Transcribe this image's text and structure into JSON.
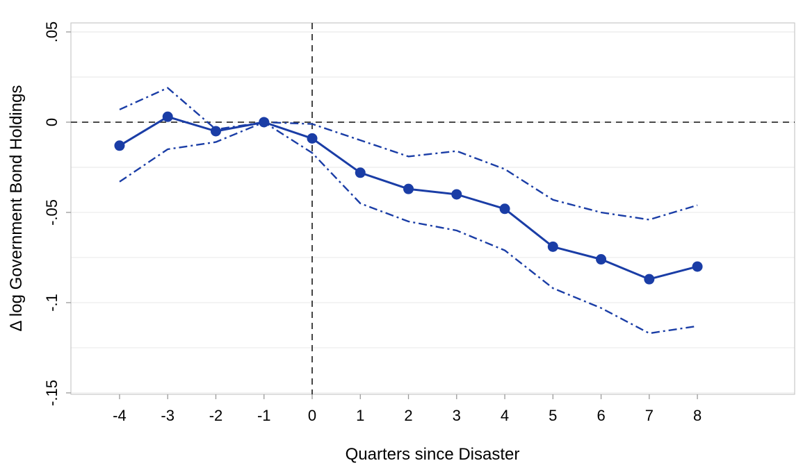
{
  "figure": {
    "xlabel": "Quarters since Disaster",
    "ylabel": "Δ log Government Bond Holdings"
  },
  "chart_data": {
    "type": "line",
    "title": "",
    "xlabel": "Quarters since Disaster",
    "ylabel": "Δ log Government Bond Holdings",
    "x": [
      -4,
      -3,
      -2,
      -1,
      0,
      1,
      2,
      3,
      4,
      5,
      6,
      7,
      8
    ],
    "series": [
      {
        "name": "point-estimate",
        "style": "solid",
        "markers": true,
        "values": [
          -0.013,
          0.003,
          -0.005,
          0.0,
          -0.009,
          -0.028,
          -0.037,
          -0.04,
          -0.048,
          -0.069,
          -0.076,
          -0.087,
          -0.08
        ]
      },
      {
        "name": "ci-upper",
        "style": "dash-dot",
        "markers": false,
        "values": [
          0.007,
          0.019,
          -0.004,
          0.0,
          -0.001,
          -0.01,
          -0.019,
          -0.016,
          -0.026,
          -0.043,
          -0.05,
          -0.054,
          -0.046
        ]
      },
      {
        "name": "ci-lower",
        "style": "dash-dot",
        "markers": false,
        "values": [
          -0.033,
          -0.015,
          -0.011,
          0.0,
          -0.017,
          -0.045,
          -0.055,
          -0.06,
          -0.071,
          -0.092,
          -0.103,
          -0.117,
          -0.113
        ]
      }
    ],
    "reference_lines": {
      "horizontal_y": 0,
      "vertical_x": 0
    },
    "xticks": {
      "values": [
        -4,
        -3,
        -2,
        -1,
        0,
        1,
        2,
        3,
        4,
        5,
        6,
        7,
        8
      ],
      "labels": [
        "-4",
        "-3",
        "-2",
        "-1",
        "0",
        "1",
        "2",
        "3",
        "4",
        "5",
        "6",
        "7",
        "8"
      ]
    },
    "yticks": {
      "values": [
        0.05,
        0,
        -0.05,
        -0.1,
        -0.15
      ],
      "labels": [
        ".05",
        "0",
        "-.05",
        "-.1",
        "-.15"
      ]
    },
    "gridlines_y": [
      0.05,
      0.025,
      0,
      -0.025,
      -0.05,
      -0.075,
      -0.1,
      -0.125,
      -0.15
    ],
    "xlim": [
      -5.01,
      10.02
    ],
    "ylim": [
      -0.1508,
      0.055
    ],
    "grid": true,
    "legend": "none",
    "colors": {
      "series_blue": "#1a3da6",
      "reference_dash": "#2f2f2f",
      "gridline": "#ebebeb",
      "spine": "#c9c9c9",
      "tick": "#9a9a9a",
      "text": "#000000",
      "background": "#ffffff"
    }
  }
}
